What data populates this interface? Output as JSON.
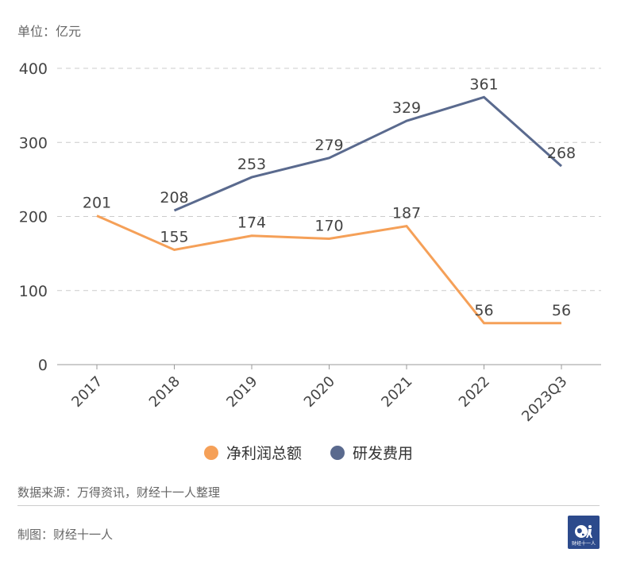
{
  "unit_label": "单位：亿元",
  "source_label": "数据来源：万得资讯，财经十一人整理",
  "credit_label": "制图：财经十一人",
  "logo_text": "财经十一人",
  "colors": {
    "net_profit": "#f5a058",
    "rd": "#5a6a8e",
    "grid": "#cccccc",
    "axis_text": "#444444",
    "label_text": "#444444"
  },
  "chart_data": {
    "type": "line",
    "categories": [
      "2017",
      "2018",
      "2019",
      "2020",
      "2021",
      "2022",
      "2023Q3"
    ],
    "ylim": [
      0,
      400
    ],
    "yticks": [
      0,
      100,
      200,
      300,
      400
    ],
    "grid": true,
    "legend_position": "bottom",
    "series": [
      {
        "name": "净利润总额",
        "color": "#f5a058",
        "values": [
          201,
          155,
          174,
          170,
          187,
          56,
          56
        ]
      },
      {
        "name": "研发费用",
        "color": "#5a6a8e",
        "values": [
          null,
          208,
          253,
          279,
          329,
          361,
          268
        ]
      }
    ]
  }
}
